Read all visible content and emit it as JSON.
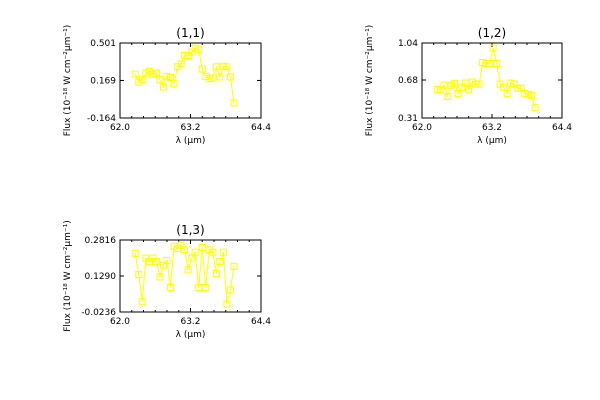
{
  "chart_data": [
    {
      "type": "line",
      "title": "(1,1)",
      "xlabel": "λ (μm)",
      "ylabel": "Flux (10⁻¹⁸ W cm⁻²μm⁻¹)",
      "xlim": [
        62.0,
        64.4
      ],
      "ylim": [
        -0.164,
        0.501
      ],
      "xticks": [
        "62.0",
        "63.2",
        "64.4"
      ],
      "yticks": [
        "0.501",
        "0.169",
        "-0.164"
      ],
      "marker": "square",
      "color": "#ffff00",
      "x": [
        62.26,
        62.32,
        62.38,
        62.44,
        62.5,
        62.56,
        62.62,
        62.68,
        62.74,
        62.8,
        62.86,
        62.92,
        62.98,
        63.04,
        63.1,
        63.16,
        63.22,
        63.28,
        63.34,
        63.4,
        63.46,
        63.52,
        63.58,
        63.64,
        63.7,
        63.76,
        63.82,
        63.88,
        63.94
      ],
      "y": [
        0.225,
        0.155,
        0.175,
        0.235,
        0.25,
        0.225,
        0.235,
        0.175,
        0.11,
        0.205,
        0.195,
        0.14,
        0.29,
        0.315,
        0.39,
        0.39,
        0.42,
        0.455,
        0.44,
        0.27,
        0.205,
        0.185,
        0.19,
        0.29,
        0.2,
        0.295,
        0.29,
        0.2,
        -0.03
      ]
    },
    {
      "type": "line",
      "title": "(1,2)",
      "xlabel": "λ (μm)",
      "ylabel": "Flux (10⁻¹⁸ W cm⁻²μm⁻¹)",
      "xlim": [
        62.0,
        64.4
      ],
      "ylim": [
        0.31,
        1.04
      ],
      "xticks": [
        "62.0",
        "63.2",
        "64.4"
      ],
      "yticks": [
        "1.04",
        "0.68",
        "0.31"
      ],
      "marker": "square",
      "color": "#ffff00",
      "x": [
        62.26,
        62.32,
        62.38,
        62.44,
        62.5,
        62.56,
        62.62,
        62.68,
        62.74,
        62.8,
        62.86,
        62.92,
        62.98,
        63.04,
        63.1,
        63.16,
        63.22,
        63.28,
        63.34,
        63.4,
        63.46,
        63.52,
        63.58,
        63.64,
        63.7,
        63.76,
        63.82,
        63.88,
        63.94
      ],
      "y": [
        0.59,
        0.585,
        0.63,
        0.52,
        0.63,
        0.645,
        0.55,
        0.605,
        0.65,
        0.59,
        0.66,
        0.64,
        0.64,
        0.85,
        0.84,
        0.84,
        0.99,
        0.84,
        0.64,
        0.61,
        0.55,
        0.65,
        0.64,
        0.6,
        0.6,
        0.55,
        0.54,
        0.53,
        0.41
      ]
    },
    {
      "type": "line",
      "title": "(1,3)",
      "xlabel": "λ (μm)",
      "ylabel": "Flux (10⁻¹⁸ W cm⁻²μm⁻¹)",
      "xlim": [
        62.0,
        64.4
      ],
      "ylim": [
        -0.0236,
        0.2816
      ],
      "xticks": [
        "62.0",
        "63.2",
        "64.4"
      ],
      "yticks": [
        "0.2816",
        "0.1290",
        "-0.0236"
      ],
      "marker": "square",
      "color": "#ffff00",
      "x": [
        62.26,
        62.32,
        62.38,
        62.44,
        62.5,
        62.56,
        62.62,
        62.68,
        62.74,
        62.8,
        62.86,
        62.92,
        62.98,
        63.04,
        63.1,
        63.16,
        63.22,
        63.28,
        63.34,
        63.4,
        63.46,
        63.52,
        63.58,
        63.64,
        63.7,
        63.76,
        63.82,
        63.88,
        63.94
      ],
      "y": [
        0.225,
        0.135,
        0.02,
        0.205,
        0.19,
        0.205,
        0.19,
        0.125,
        0.175,
        0.195,
        0.08,
        0.255,
        0.245,
        0.26,
        0.24,
        0.155,
        0.205,
        0.23,
        0.08,
        0.25,
        0.08,
        0.24,
        0.23,
        0.14,
        0.19,
        0.23,
        0.01,
        0.07,
        0.17
      ]
    }
  ]
}
